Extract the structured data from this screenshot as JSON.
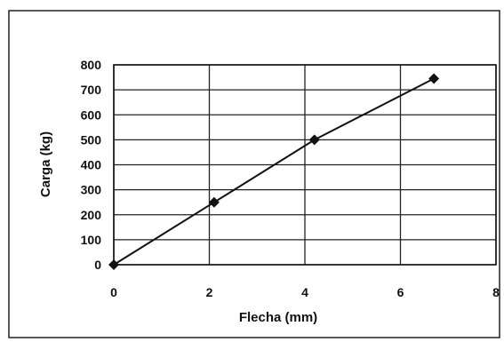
{
  "chart_data": {
    "type": "line",
    "title": "",
    "xlabel": "Flecha (mm)",
    "ylabel": "Carga (kg)",
    "xlim": [
      0,
      8
    ],
    "ylim": [
      0,
      800
    ],
    "x_ticks": [
      0,
      2,
      4,
      6,
      8
    ],
    "y_ticks": [
      0,
      100,
      200,
      300,
      400,
      500,
      600,
      700,
      800
    ],
    "x_tick_labels": [
      "0",
      "2",
      "4",
      "6",
      "8"
    ],
    "y_tick_labels": [
      "0",
      "100",
      "200",
      "300",
      "400",
      "500",
      "600",
      "700",
      "800"
    ],
    "grid": true,
    "legend": "none",
    "series": [
      {
        "x": [
          0,
          2.1,
          4.2,
          6.7
        ],
        "y": [
          0,
          250,
          500,
          745
        ],
        "marker": "diamond",
        "color": "#111111"
      }
    ]
  }
}
